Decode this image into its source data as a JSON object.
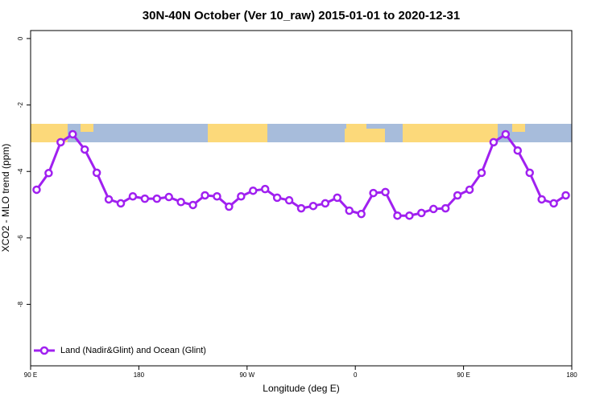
{
  "chart_data": {
    "type": "line",
    "title": "30N-40N October (Ver 10_raw)   2015-01-01 to 2020-12-31",
    "x_label": "Longitude (deg E)",
    "y_label": "XCO2 - MLO trend (ppm)",
    "x": [
      95,
      105,
      115,
      125,
      135,
      145,
      155,
      165,
      175,
      185,
      195,
      205,
      215,
      225,
      235,
      245,
      255,
      265,
      275,
      285,
      295,
      305,
      315,
      325,
      335,
      345,
      355,
      365,
      375,
      385,
      395,
      405,
      415,
      425,
      435,
      445,
      455,
      465,
      475,
      485,
      495,
      505,
      515,
      525,
      535
    ],
    "series": [
      {
        "name": "Land (Nadir&Glint) and Ocean (Glint)",
        "color": "#a020f0",
        "values": [
          -4.55,
          -4.05,
          -3.12,
          -2.88,
          -3.34,
          -4.04,
          -4.84,
          -4.96,
          -4.75,
          -4.82,
          -4.82,
          -4.77,
          -4.92,
          -5.01,
          -4.72,
          -4.75,
          -5.06,
          -4.75,
          -4.58,
          -4.53,
          -4.79,
          -4.87,
          -5.11,
          -5.04,
          -4.96,
          -4.79,
          -5.18,
          -5.28,
          -4.65,
          -4.62,
          -5.33,
          -5.33,
          -5.25,
          -5.13,
          -5.11,
          -4.72,
          -4.55,
          -4.04,
          -3.12,
          -2.88,
          -3.37,
          -4.04,
          -4.84,
          -4.96,
          -4.72
        ]
      }
    ],
    "xlim": [
      90,
      540
    ],
    "xticks": [
      {
        "value": 90,
        "label": "90 E"
      },
      180,
      {
        "value": 270,
        "label": "90 W"
      },
      {
        "value": 360,
        "label": "0"
      },
      {
        "value": 450,
        "label": "90 E"
      },
      {
        "value": 540,
        "label": "180"
      }
    ],
    "ylim": [
      -9.85,
      0.24
    ],
    "yticks": [
      0,
      -2,
      -4,
      -6,
      -8
    ],
    "legend": "bottom-left"
  }
}
